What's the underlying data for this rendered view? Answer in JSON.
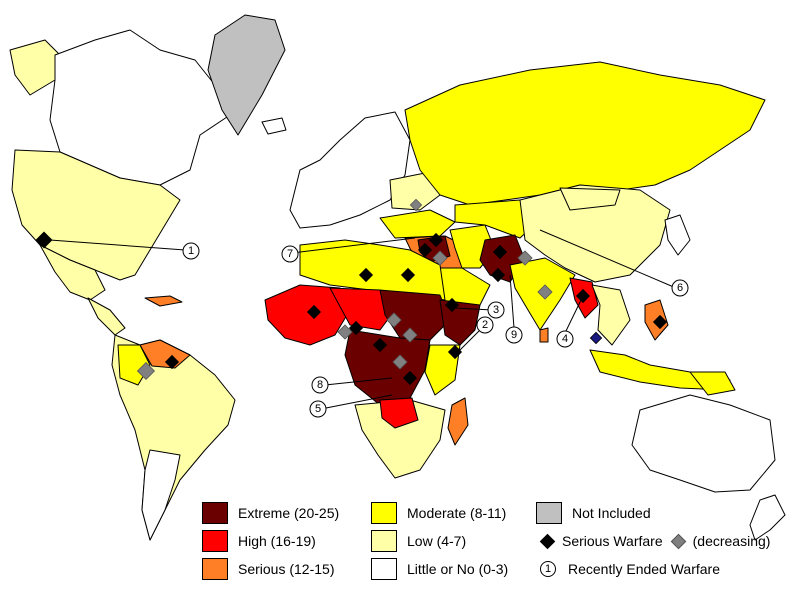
{
  "legend": {
    "categories": [
      {
        "key": "extreme",
        "label": "Extreme (20-25)",
        "color": "#6b0000"
      },
      {
        "key": "high",
        "label": "High (16-19)",
        "color": "#ff0000"
      },
      {
        "key": "serious",
        "label": "Serious (12-15)",
        "color": "#ff7f27"
      },
      {
        "key": "moderate",
        "label": "Moderate (8-11)",
        "color": "#ffff00"
      },
      {
        "key": "low",
        "label": "Low (4-7)",
        "color": "#ffffa8"
      },
      {
        "key": "little",
        "label": "Little or No (0-3)",
        "color": "#ffffff"
      },
      {
        "key": "not_included",
        "label": "Not Included",
        "color": "#c0c0c0"
      }
    ],
    "serious_warfare_label": "Serious Warfare",
    "decreasing_label": "(decreasing)",
    "recently_ended_symbol": "1",
    "recently_ended_label": "Recently Ended Warfare"
  },
  "callouts": [
    {
      "number": "1"
    },
    {
      "number": "2"
    },
    {
      "number": "3"
    },
    {
      "number": "4"
    },
    {
      "number": "5"
    },
    {
      "number": "6"
    },
    {
      "number": "7"
    },
    {
      "number": "8"
    },
    {
      "number": "9"
    }
  ]
}
